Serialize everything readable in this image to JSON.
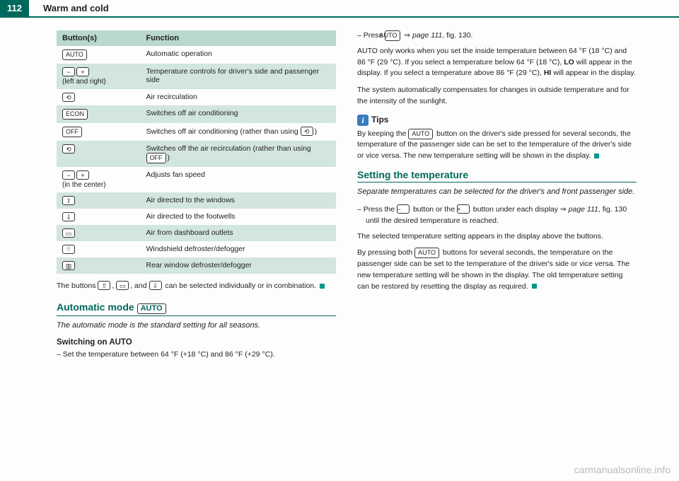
{
  "header": {
    "page_number": "112",
    "title": "Warm and cold"
  },
  "table": {
    "head_buttons": "Button(s)",
    "head_function": "Function",
    "rows": [
      {
        "btn_html": "<span class='btn-box'>AUTO</span>",
        "func": "Automatic operation",
        "shade": false
      },
      {
        "btn_html": "<span class='btn-icon'>−</span><span class='btn-icon'>+</span><span class='subtext'>(left and right)</span>",
        "func": "Temperature controls for driver's side and passenger side",
        "shade": true
      },
      {
        "btn_html": "<span class='btn-icon'>⟲</span>",
        "func": "Air recirculation",
        "shade": false
      },
      {
        "btn_html": "<span class='btn-box'>ECON</span>",
        "func": "Switches off air conditioning",
        "shade": true
      },
      {
        "btn_html": "<span class='btn-box'>OFF</span>",
        "func": "Switches off air conditioning (rather than using <span class='btn-icon'>⟲</span>)",
        "shade": false
      },
      {
        "btn_html": "<span class='btn-icon'>⟲</span>",
        "func": "Switches off the air recirculation (rather than using <span class='btn-box'>OFF</span>)",
        "shade": true
      },
      {
        "btn_html": "<span class='btn-icon'>−</span><span class='btn-icon'>+</span><span class='subtext'>(in the center)</span>",
        "func": "Adjusts fan speed",
        "shade": false
      },
      {
        "btn_html": "<span class='btn-icon'>⇧</span>",
        "func": "Air directed to the windows",
        "shade": true
      },
      {
        "btn_html": "<span class='btn-icon'>⇩</span>",
        "func": "Air directed to the footwells",
        "shade": false
      },
      {
        "btn_html": "<span class='btn-icon'>▭</span>",
        "func": "Air from dashboard outlets",
        "shade": true
      },
      {
        "btn_html": "<span class='btn-icon'>⌔</span>",
        "func": "Windshield defroster/defogger",
        "shade": false
      },
      {
        "btn_html": "<span class='btn-icon'>▥</span>",
        "func": "Rear window defroster/defogger",
        "shade": true
      }
    ]
  },
  "left": {
    "note_after_table": "The buttons <span class='btn-icon'>⇧</span>, <span class='btn-icon'>▭</span>, and <span class='btn-icon'>⇩</span> can be selected individually or in combination. <span class='sq-teal'></span>",
    "section_auto_title": "Automatic mode <span class='btn-box' style='font-size:11px'>AUTO</span>",
    "section_auto_intro": "The automatic mode is the standard setting for all seasons.",
    "switching_on": "Switching on AUTO",
    "switching_on_step": "– Set the temperature between 64 °F (+18 °C) and 86 °F (+29 °C)."
  },
  "right": {
    "press_auto": "– Press <span class='btn-box'>AUTO</span> ⇒ <i>page 111</i>, fig. 130.",
    "auto_para": "AUTO only works when you set the inside temperature between 64 °F (18 °C) and 86 °F (29 °C). If you select a temperature below 64 °F (18 °C), <b>LO</b> will appear in the display. If you select a temperature above 86 °F (29 °C), <b>HI</b> will appear in the display.",
    "auto_para2": "The system automatically compensates for changes in outside temperature and for the intensity of the sunlight.",
    "tips_label": "Tips",
    "tips_text": "By keeping the <span class='btn-box'>AUTO</span> button on the driver's side pressed for several seconds, the temperature of the passenger side can be set to the temperature of the driver's side or vice versa. The new temperature setting will be shown in the display. <span class='sq-teal'></span>",
    "section_temp_title": "Setting the temperature",
    "section_temp_intro": "Separate temperatures can be selected for the driver's and front passenger side.",
    "temp_step": "– Press the <span class='btn-icon'>−</span> button or the <span class='btn-icon'>+</span> button under each display ⇒ <i>page 111</i>, fig. 130 until the desired temperature is reached.",
    "temp_para1": "The selected temperature setting appears in the display above the buttons.",
    "temp_para2": "By pressing both <span class='btn-box'>AUTO</span> buttons for several seconds, the temperature on the passenger side can be set to the temperature of the driver's side or vice versa. The new temperature setting will be shown in the display. The old temperature setting can be restored by resetting the display as required. <span class='sq-teal'></span>"
  },
  "watermark": "carmanualsonline.info"
}
